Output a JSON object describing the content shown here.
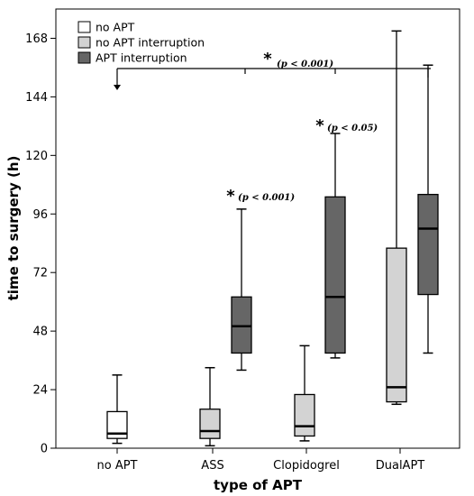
{
  "chart_data": {
    "type": "boxplot",
    "xlabel": "type of APT",
    "ylabel": "time to surgery (h)",
    "ylim": [
      0,
      180
    ],
    "yticks": [
      0,
      24,
      48,
      72,
      96,
      120,
      144,
      168
    ],
    "categories": [
      "no APT",
      "ASS",
      "Clopidogrel",
      "DualAPT"
    ],
    "legend_position": "top-left",
    "series": [
      {
        "name": "no APT",
        "color": "#ffffff",
        "boxes": [
          {
            "category": "no APT",
            "min": 2,
            "q1": 4,
            "median": 6,
            "q3": 15,
            "max": 30
          }
        ]
      },
      {
        "name": "no APT interruption",
        "color": "#d3d3d3",
        "boxes": [
          {
            "category": "ASS",
            "min": 1,
            "q1": 4,
            "median": 7,
            "q3": 16,
            "max": 33
          },
          {
            "category": "Clopidogrel",
            "min": 3,
            "q1": 5,
            "median": 9,
            "q3": 22,
            "max": 42
          },
          {
            "category": "DualAPT",
            "min": 18,
            "q1": 19,
            "median": 25,
            "q3": 82,
            "max": 171
          }
        ]
      },
      {
        "name": "APT interruption",
        "color": "#666666",
        "boxes": [
          {
            "category": "ASS",
            "min": 32,
            "q1": 39,
            "median": 50,
            "q3": 62,
            "max": 98
          },
          {
            "category": "Clopidogrel",
            "min": 37,
            "q1": 39,
            "median": 62,
            "q3": 103,
            "max": 129
          },
          {
            "category": "DualAPT",
            "min": 39,
            "q1": 63,
            "median": 90,
            "q3": 104,
            "max": 157
          }
        ]
      }
    ],
    "annotations": [
      {
        "marker": "*",
        "text": "(p < 0.001)",
        "target": "no APT vs APT interruption bracket"
      },
      {
        "marker": "*",
        "text": "(p < 0.001)",
        "target": "ASS - APT interruption"
      },
      {
        "marker": "*",
        "text": "(p < 0.05)",
        "target": "Clopidogrel - APT interruption"
      }
    ]
  }
}
